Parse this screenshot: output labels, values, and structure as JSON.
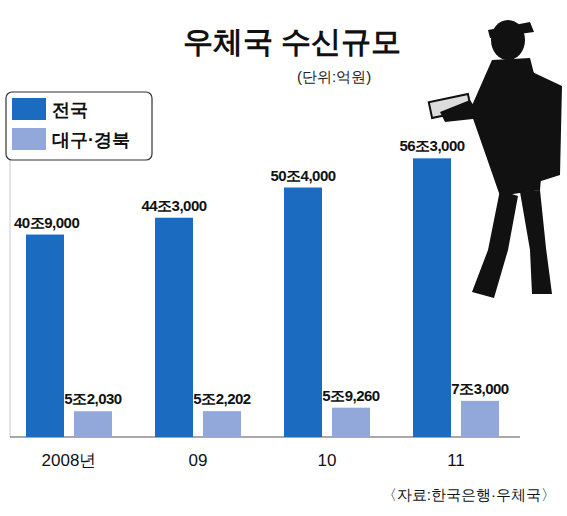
{
  "chart_data": {
    "type": "bar",
    "title": "우체국 수신규모",
    "subtitle": "(단위:억원)",
    "source": "〈자료:한국은행·우체국〉",
    "categories": [
      "2008년",
      "09",
      "10",
      "11"
    ],
    "series": [
      {
        "name": "전국",
        "color": "#1b6cc0",
        "values": [
          409000,
          443000,
          504000,
          563000
        ],
        "value_labels": [
          "40조9,000",
          "44조3,000",
          "50조4,000",
          "56조3,000"
        ]
      },
      {
        "name": "대구·경북",
        "color": "#92a7da",
        "values": [
          52030,
          52202,
          59260,
          73000
        ],
        "value_labels": [
          "5조2,030",
          "5조2,202",
          "5조9,260",
          "7조3,000"
        ]
      }
    ],
    "ylim": [
      0,
      600000
    ],
    "yticks": [
      0
    ],
    "tick_labels": false,
    "data_labels": true,
    "legend": "top-left",
    "grid": false
  }
}
